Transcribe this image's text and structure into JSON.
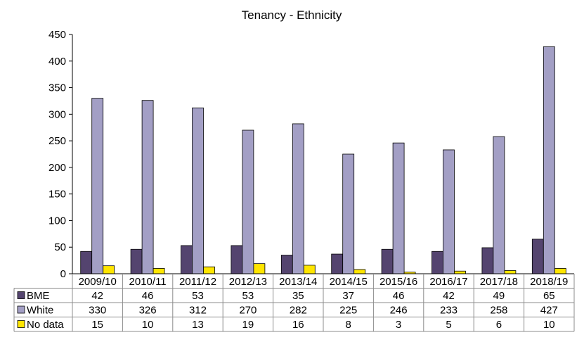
{
  "chart_data": {
    "type": "bar",
    "title": "Tenancy - Ethnicity",
    "categories": [
      "2009/10",
      "2010/11",
      "2011/12",
      "2012/13",
      "2013/14",
      "2014/15",
      "2015/16",
      "2016/17",
      "2017/18",
      "2018/19"
    ],
    "series": [
      {
        "name": "BME",
        "color": "#54446f",
        "values": [
          42,
          46,
          53,
          53,
          35,
          37,
          46,
          42,
          49,
          65
        ]
      },
      {
        "name": "White",
        "color": "#a39fc5",
        "values": [
          330,
          326,
          312,
          270,
          282,
          225,
          246,
          233,
          258,
          427
        ]
      },
      {
        "name": "No data",
        "color": "#ffe500",
        "values": [
          15,
          10,
          13,
          19,
          16,
          8,
          3,
          5,
          6,
          10
        ]
      }
    ],
    "ylim": [
      0,
      450
    ],
    "yticks": [
      0,
      50,
      100,
      150,
      200,
      250,
      300,
      350,
      400,
      450
    ],
    "grid": false,
    "legend": "data-table-below"
  }
}
